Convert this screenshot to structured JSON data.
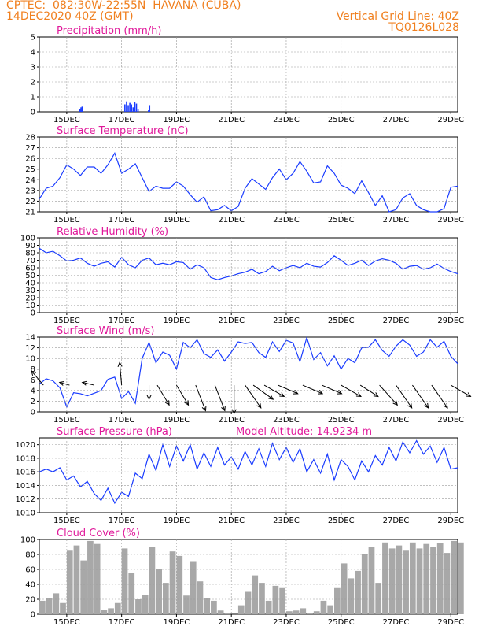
{
  "header": {
    "line1_left": "CPTEC:  082:30W-22:55N  HAVANA (CUBA)",
    "line2_left": "14DEC2020 40Z (GMT)",
    "line2_right": "Vertical Grid Line: 40Z",
    "line3_right": "TQ0126L028"
  },
  "colors": {
    "header": "#f08020",
    "title": "#e0189a",
    "line": "#1a3cff",
    "bar": "#1a3cff",
    "cloud": "#a8a8a8",
    "grid": "#9a9a9a"
  },
  "x_tick_labels": [
    "15DEC",
    "17DEC",
    "19DEC",
    "21DEC",
    "23DEC",
    "25DEC",
    "27DEC",
    "29DEC"
  ],
  "chart_data": [
    {
      "type": "bar",
      "title": "Precipitation (mm/h)",
      "ylim": [
        0,
        5
      ],
      "yticks": [
        0,
        1,
        2,
        3,
        4,
        5
      ],
      "x_unit": "days since 14DEC2020 00Z",
      "points": [
        {
          "x": 1.48,
          "y": 0.2
        },
        {
          "x": 1.52,
          "y": 0.3
        },
        {
          "x": 1.56,
          "y": 0.35
        },
        {
          "x": 3.12,
          "y": 0.5
        },
        {
          "x": 3.18,
          "y": 0.7
        },
        {
          "x": 3.24,
          "y": 0.45
        },
        {
          "x": 3.3,
          "y": 0.6
        },
        {
          "x": 3.36,
          "y": 0.5
        },
        {
          "x": 3.42,
          "y": 0.3
        },
        {
          "x": 3.48,
          "y": 0.65
        },
        {
          "x": 3.54,
          "y": 0.55
        },
        {
          "x": 3.6,
          "y": 0.2
        },
        {
          "x": 3.98,
          "y": 0.1
        },
        {
          "x": 4.02,
          "y": 0.45
        }
      ]
    },
    {
      "type": "line",
      "title": "Surface Temperature (nC)",
      "ylim": [
        21,
        28
      ],
      "yticks": [
        21,
        22,
        23,
        24,
        25,
        26,
        27,
        28
      ],
      "x": [
        0,
        0.25,
        0.5,
        0.75,
        1,
        1.25,
        1.5,
        1.75,
        2,
        2.25,
        2.5,
        2.75,
        3,
        3.25,
        3.5,
        3.75,
        4,
        4.25,
        4.5,
        4.75,
        5,
        5.25,
        5.5,
        5.75,
        6,
        6.25,
        6.5,
        6.75,
        7,
        7.25,
        7.5,
        7.75,
        8,
        8.25,
        8.5,
        8.75,
        9,
        9.25,
        9.5,
        9.75,
        10,
        10.25,
        10.5,
        10.75,
        11,
        11.25,
        11.5,
        11.75,
        12,
        12.25,
        12.5,
        12.75,
        13,
        13.25,
        13.5,
        13.75,
        14,
        14.25,
        14.5,
        14.75,
        15,
        15.25
      ],
      "y": [
        22.2,
        23.2,
        23.4,
        24.2,
        25.4,
        25.0,
        24.4,
        25.2,
        25.2,
        24.6,
        25.4,
        26.5,
        24.6,
        25.0,
        25.5,
        24.2,
        22.9,
        23.4,
        23.2,
        23.2,
        23.8,
        23.4,
        22.6,
        21.9,
        22.4,
        21.1,
        21.2,
        21.6,
        21.1,
        21.5,
        23.2,
        24.1,
        23.6,
        23.1,
        24.2,
        25.0,
        24.0,
        24.6,
        25.7,
        24.8,
        23.7,
        23.8,
        25.3,
        24.6,
        23.5,
        23.2,
        22.7,
        23.9,
        22.8,
        21.6,
        22.5,
        21.0,
        21.2,
        22.3,
        22.7,
        21.6,
        21.2,
        21.0,
        20.9,
        21.3,
        23.3,
        23.4
      ]
    },
    {
      "type": "line",
      "title": "Relative Humidity (%)",
      "ylim": [
        0,
        100
      ],
      "yticks": [
        0,
        10,
        20,
        30,
        40,
        50,
        60,
        70,
        80,
        90,
        100
      ],
      "x": [
        0,
        0.25,
        0.5,
        0.75,
        1,
        1.25,
        1.5,
        1.75,
        2,
        2.25,
        2.5,
        2.75,
        3,
        3.25,
        3.5,
        3.75,
        4,
        4.25,
        4.5,
        4.75,
        5,
        5.25,
        5.5,
        5.75,
        6,
        6.25,
        6.5,
        6.75,
        7,
        7.25,
        7.5,
        7.75,
        8,
        8.25,
        8.5,
        8.75,
        9,
        9.25,
        9.5,
        9.75,
        10,
        10.25,
        10.5,
        10.75,
        11,
        11.25,
        11.5,
        11.75,
        12,
        12.25,
        12.5,
        12.75,
        13,
        13.25,
        13.5,
        13.75,
        14,
        14.25,
        14.5,
        14.75,
        15,
        15.25
      ],
      "y": [
        86,
        80,
        82,
        76,
        69,
        70,
        73,
        66,
        62,
        66,
        68,
        61,
        74,
        64,
        60,
        70,
        73,
        64,
        66,
        64,
        68,
        67,
        58,
        64,
        60,
        47,
        44,
        47,
        49,
        52,
        54,
        58,
        52,
        55,
        62,
        56,
        60,
        63,
        60,
        66,
        62,
        61,
        67,
        76,
        70,
        63,
        66,
        70,
        63,
        69,
        72,
        70,
        66,
        58,
        62,
        63,
        58,
        60,
        65,
        59,
        55,
        52
      ]
    },
    {
      "type": "line",
      "title": "Surface Wind (m/s)",
      "ylim": [
        0,
        14
      ],
      "yticks": [
        0,
        2,
        4,
        6,
        8,
        10,
        12,
        14
      ],
      "x": [
        0,
        0.25,
        0.5,
        0.75,
        1,
        1.25,
        1.5,
        1.75,
        2,
        2.25,
        2.5,
        2.75,
        3,
        3.25,
        3.5,
        3.75,
        4,
        4.25,
        4.5,
        4.75,
        5,
        5.25,
        5.5,
        5.75,
        6,
        6.25,
        6.5,
        6.75,
        7,
        7.25,
        7.5,
        7.75,
        8,
        8.25,
        8.5,
        8.75,
        9,
        9.25,
        9.5,
        9.75,
        10,
        10.25,
        10.5,
        10.75,
        11,
        11.25,
        11.5,
        11.75,
        12,
        12.25,
        12.5,
        12.75,
        13,
        13.25,
        13.5,
        13.75,
        14,
        14.25,
        14.5,
        14.75,
        15,
        15.25
      ],
      "y": [
        5.2,
        6.2,
        5.8,
        4.5,
        0.9,
        3.6,
        3.4,
        3.0,
        3.5,
        4.0,
        6.1,
        6.5,
        2.5,
        3.8,
        1.6,
        10.0,
        13.0,
        9.2,
        11.2,
        10.6,
        8.0,
        13.0,
        12.0,
        13.5,
        10.9,
        10.2,
        11.6,
        9.5,
        11.2,
        13.1,
        12.8,
        13.0,
        11.1,
        10.2,
        13.1,
        11.3,
        13.4,
        12.9,
        9.4,
        13.9,
        9.8,
        11.1,
        8.6,
        10.5,
        8.0,
        10.0,
        9.2,
        12.0,
        12.1,
        13.5,
        11.5,
        10.4,
        12.3,
        13.5,
        12.5,
        10.4,
        11.2,
        13.5,
        12.1,
        13.2,
        10.4,
        9.0
      ],
      "wind_vectors": [
        {
          "x": 0.15,
          "u": -0.6,
          "v": 0.5
        },
        {
          "x": 1.1,
          "u": -0.5,
          "v": 0.1
        },
        {
          "x": 2.0,
          "u": -0.6,
          "v": 0.1
        },
        {
          "x": 3.0,
          "u": -0.1,
          "v": 0.8
        },
        {
          "x": 4.0,
          "u": 0.0,
          "v": -0.5
        },
        {
          "x": 4.3,
          "u": 0.6,
          "v": -0.7
        },
        {
          "x": 5.0,
          "u": 0.6,
          "v": -0.7
        },
        {
          "x": 5.7,
          "u": 0.5,
          "v": -0.9
        },
        {
          "x": 6.4,
          "u": 0.5,
          "v": -0.9
        },
        {
          "x": 7.1,
          "u": 0.0,
          "v": -1.0
        },
        {
          "x": 7.5,
          "u": 0.8,
          "v": -0.8
        },
        {
          "x": 7.8,
          "u": 1.0,
          "v": -0.5
        },
        {
          "x": 8.2,
          "u": 1.0,
          "v": -0.4
        },
        {
          "x": 8.7,
          "u": 1.0,
          "v": -0.3
        },
        {
          "x": 9.6,
          "u": 1.0,
          "v": -0.3
        },
        {
          "x": 10.3,
          "u": 1.0,
          "v": -0.3
        },
        {
          "x": 11.0,
          "u": 1.0,
          "v": -0.4
        },
        {
          "x": 11.7,
          "u": 0.9,
          "v": -0.4
        },
        {
          "x": 12.4,
          "u": 0.9,
          "v": -0.7
        },
        {
          "x": 13.0,
          "u": 0.8,
          "v": -0.8
        },
        {
          "x": 13.6,
          "u": 0.8,
          "v": -0.8
        },
        {
          "x": 14.3,
          "u": 0.8,
          "v": -0.8
        },
        {
          "x": 15.0,
          "u": 1.0,
          "v": -0.4
        }
      ]
    },
    {
      "type": "line",
      "title": "Surface Pressure (hPa)",
      "annotation": "Model Altitude: 14.9234 m",
      "ylim": [
        1010,
        1021
      ],
      "yticks": [
        1010,
        1012,
        1014,
        1016,
        1018,
        1020
      ],
      "x": [
        0,
        0.25,
        0.5,
        0.75,
        1,
        1.25,
        1.5,
        1.75,
        2,
        2.25,
        2.5,
        2.75,
        3,
        3.25,
        3.5,
        3.75,
        4,
        4.25,
        4.5,
        4.75,
        5,
        5.25,
        5.5,
        5.75,
        6,
        6.25,
        6.5,
        6.75,
        7,
        7.25,
        7.5,
        7.75,
        8,
        8.25,
        8.5,
        8.75,
        9,
        9.25,
        9.5,
        9.75,
        10,
        10.25,
        10.5,
        10.75,
        11,
        11.25,
        11.5,
        11.75,
        12,
        12.25,
        12.5,
        12.75,
        13,
        13.25,
        13.5,
        13.75,
        14,
        14.25,
        14.5,
        14.75,
        15,
        15.25
      ],
      "y": [
        1016.0,
        1016.4,
        1016.0,
        1016.6,
        1014.8,
        1015.4,
        1013.8,
        1014.6,
        1012.8,
        1011.8,
        1013.6,
        1011.4,
        1013.0,
        1012.4,
        1015.8,
        1015.0,
        1018.6,
        1016.2,
        1020.0,
        1016.8,
        1019.8,
        1017.6,
        1020.0,
        1016.4,
        1018.8,
        1016.8,
        1019.6,
        1017.0,
        1018.2,
        1016.4,
        1019.0,
        1017.0,
        1019.4,
        1016.8,
        1020.2,
        1017.8,
        1019.6,
        1017.4,
        1019.4,
        1016.0,
        1017.8,
        1015.8,
        1018.6,
        1014.8,
        1017.8,
        1016.8,
        1014.8,
        1017.6,
        1016.0,
        1018.4,
        1017.0,
        1019.6,
        1017.6,
        1020.4,
        1018.8,
        1020.6,
        1018.6,
        1019.8,
        1017.4,
        1019.6,
        1016.4,
        1016.6
      ]
    },
    {
      "type": "area",
      "title": "Cloud Cover (%)",
      "ylim": [
        0,
        100
      ],
      "yticks": [
        0,
        20,
        40,
        60,
        80,
        100
      ],
      "x": [
        0,
        0.25,
        0.5,
        0.75,
        1,
        1.25,
        1.5,
        1.75,
        2,
        2.25,
        2.5,
        2.75,
        3,
        3.25,
        3.5,
        3.75,
        4,
        4.25,
        4.5,
        4.75,
        5,
        5.25,
        5.5,
        5.75,
        6,
        6.25,
        6.5,
        6.75,
        7,
        7.25,
        7.5,
        7.75,
        8,
        8.25,
        8.5,
        8.75,
        9,
        9.25,
        9.5,
        9.75,
        10,
        10.25,
        10.5,
        10.75,
        11,
        11.25,
        11.5,
        11.75,
        12,
        12.25,
        12.5,
        12.75,
        13,
        13.25,
        13.5,
        13.75,
        14,
        14.25,
        14.5,
        14.75,
        15,
        15.25
      ],
      "y": [
        18,
        22,
        28,
        15,
        85,
        92,
        72,
        98,
        94,
        6,
        8,
        15,
        88,
        55,
        20,
        26,
        90,
        60,
        42,
        84,
        78,
        25,
        70,
        44,
        22,
        18,
        5,
        2,
        0,
        12,
        30,
        52,
        42,
        18,
        38,
        35,
        4,
        5,
        8,
        2,
        4,
        18,
        12,
        35,
        68,
        48,
        58,
        80,
        90,
        42,
        96,
        88,
        92,
        85,
        96,
        88,
        94,
        90,
        95,
        82,
        98,
        96
      ]
    }
  ]
}
